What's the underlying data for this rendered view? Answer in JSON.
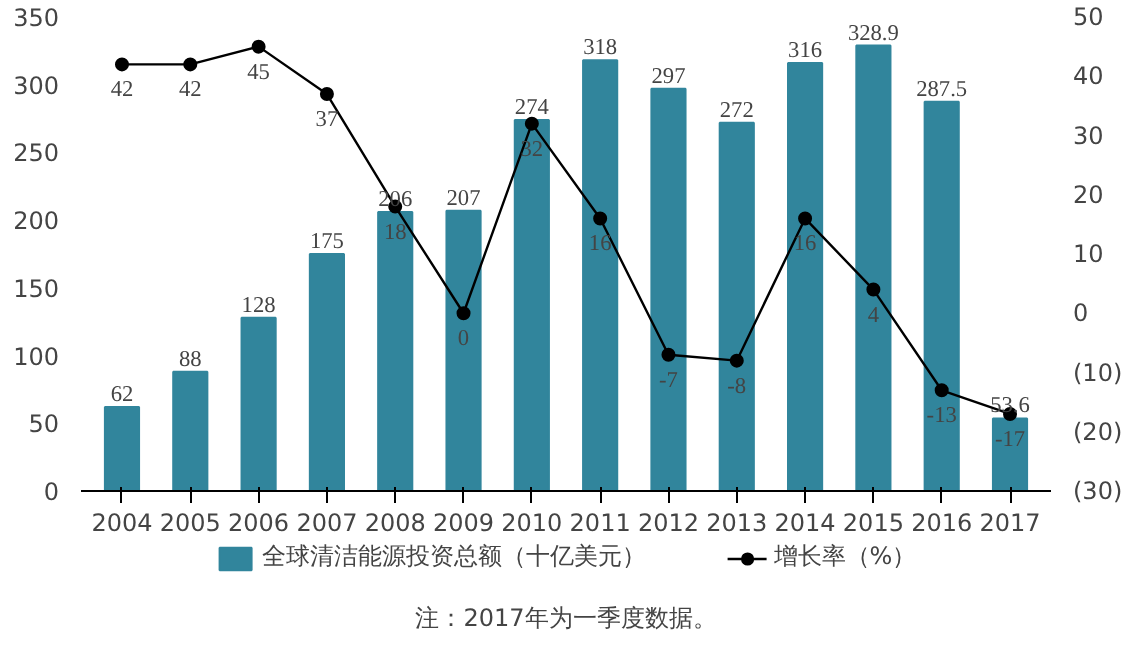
{
  "chart_data": {
    "type": "bar",
    "categories": [
      "2004",
      "2005",
      "2006",
      "2007",
      "2008",
      "2009",
      "2010",
      "2011",
      "2012",
      "2013",
      "2014",
      "2015",
      "2016",
      "2017"
    ],
    "series": [
      {
        "name": "全球清洁能源投资总额（十亿美元）",
        "color": "#31859c",
        "values": [
          62,
          88,
          128,
          175,
          206,
          207,
          274,
          318,
          297,
          272,
          316,
          328.9,
          287.5,
          53.6
        ]
      },
      {
        "name": "增长率（%）",
        "type": "line",
        "axis": "y2",
        "color": "#000000",
        "marker": "circle",
        "values": [
          42,
          42,
          45,
          37,
          18,
          0,
          32,
          16,
          -7,
          -8,
          16,
          4,
          -13,
          -17
        ]
      }
    ],
    "ylim": [
      0,
      350
    ],
    "yticks": [
      0,
      50,
      100,
      150,
      200,
      250,
      300,
      350
    ],
    "y2lim": [
      -30,
      50
    ],
    "y2ticks": [
      {
        "value": -30,
        "label": "(30)"
      },
      {
        "value": -20,
        "label": "(20)"
      },
      {
        "value": -10,
        "label": "(10)"
      },
      0,
      10,
      20,
      30,
      40,
      50
    ],
    "data_labels": true,
    "grid": false,
    "legend": "bottom",
    "annotations": [
      "注：2017年为一季度数据。"
    ]
  }
}
